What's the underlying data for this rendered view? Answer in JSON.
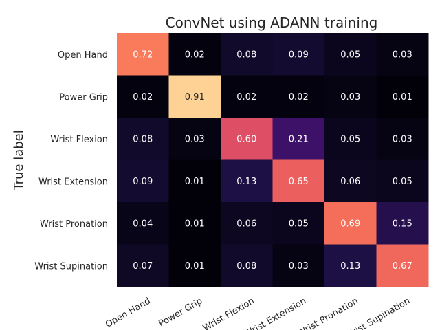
{
  "chart_data": {
    "type": "heatmap",
    "title": "ConvNet using ADANN training",
    "ylabel": "True label",
    "xlabel": "",
    "rows": [
      "Open Hand",
      "Power Grip",
      "Wrist Flexion",
      "Wrist Extension",
      "Wrist Pronation",
      "Wrist Supination"
    ],
    "columns": [
      "Open Hand",
      "Power Grip",
      "Wrist Flexion",
      "Wrist Extension",
      "Wrist Pronation",
      "Wrist Supination"
    ],
    "values": [
      [
        0.72,
        0.02,
        0.08,
        0.09,
        0.05,
        0.03
      ],
      [
        0.02,
        0.91,
        0.02,
        0.02,
        0.03,
        0.01
      ],
      [
        0.08,
        0.03,
        0.6,
        0.21,
        0.05,
        0.03
      ],
      [
        0.09,
        0.01,
        0.13,
        0.65,
        0.06,
        0.05
      ],
      [
        0.04,
        0.01,
        0.06,
        0.05,
        0.69,
        0.15
      ],
      [
        0.07,
        0.01,
        0.08,
        0.03,
        0.13,
        0.67
      ]
    ],
    "colormap": "magma",
    "value_range": [
      0,
      1
    ]
  }
}
